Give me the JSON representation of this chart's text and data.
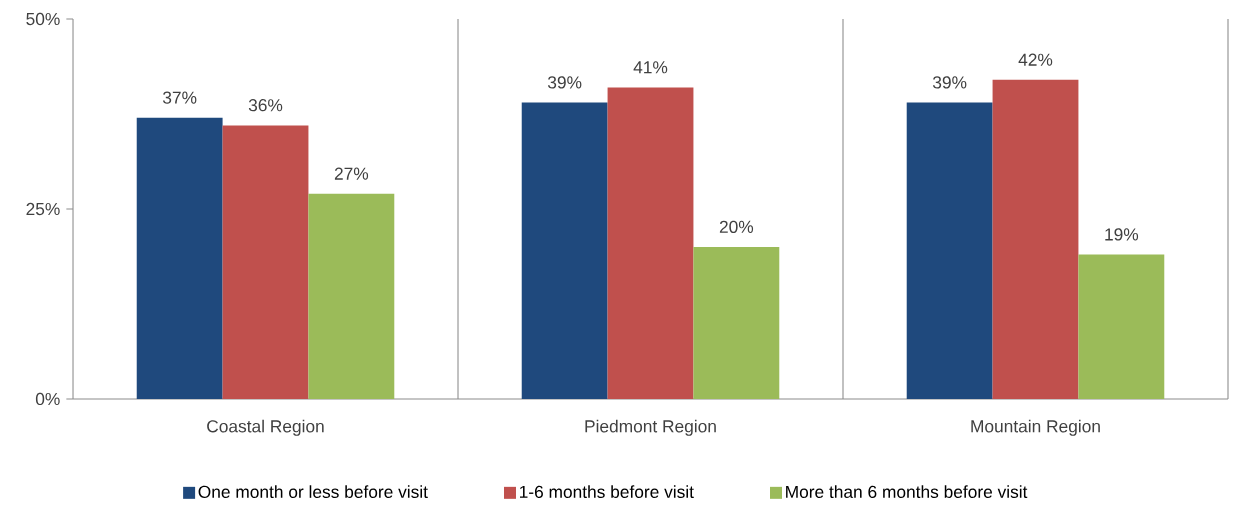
{
  "chart_data": {
    "type": "bar",
    "categories": [
      "Coastal Region",
      "Piedmont Region",
      "Mountain Region"
    ],
    "series": [
      {
        "name": "One month or less before visit",
        "color": "#1f497d",
        "values": [
          37,
          39,
          39
        ],
        "value_labels": [
          "37%",
          "39%",
          "39%"
        ]
      },
      {
        "name": "1-6 months before visit",
        "color": "#c0504d",
        "values": [
          36,
          41,
          42
        ],
        "value_labels": [
          "36%",
          "41%",
          "42%"
        ]
      },
      {
        "name": "More than 6 months before visit",
        "color": "#9bbb59",
        "values": [
          27,
          20,
          19
        ],
        "value_labels": [
          "27%",
          "20%",
          "19%"
        ]
      }
    ],
    "ylim": [
      0,
      50
    ],
    "yticks": [
      {
        "value": 0,
        "label": "0%"
      },
      {
        "value": 25,
        "label": "25%"
      },
      {
        "value": 50,
        "label": "50%"
      }
    ],
    "grid": "x",
    "legend": "bottom"
  }
}
